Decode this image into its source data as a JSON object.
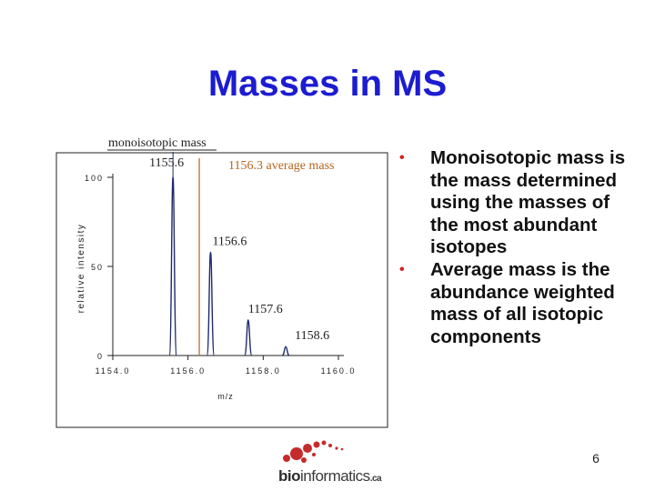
{
  "slide": {
    "title": "Masses in MS",
    "page_number": "6"
  },
  "bullets": [
    {
      "text": "Monoisotopic mass is the mass determined using the masses of the most abundant isotopes"
    },
    {
      "text": "Average mass is the abundance weighted mass of all isotopic components"
    }
  ],
  "logo": {
    "text_bold": "bio",
    "text_main": "informatics",
    "text_suffix": ".ca"
  },
  "chart_data": {
    "type": "line",
    "xlabel": "m/z",
    "ylabel": "relative intensity",
    "xlim": [
      1154.0,
      1160.0
    ],
    "ylim": [
      0,
      100
    ],
    "x_ticks": [
      "1154.0",
      "1156.0",
      "1158.0",
      "1160.0"
    ],
    "y_ticks": [
      "0",
      "50",
      "100"
    ],
    "annotations": {
      "monoisotopic_label": "monoisotopic mass",
      "average_label": "1156.3 average mass",
      "average_mass": 1156.3
    },
    "peaks": [
      {
        "mz": 1155.6,
        "label": "1155.6",
        "intensity": 100
      },
      {
        "mz": 1156.6,
        "label": "1156.6",
        "intensity": 58
      },
      {
        "mz": 1157.6,
        "label": "1157.6",
        "intensity": 20
      },
      {
        "mz": 1158.6,
        "label": "1158.6",
        "intensity": 5
      }
    ],
    "colors": {
      "average_line": "#b5651d",
      "peak": "#1f2a6b",
      "monoisotopic_line": "#1f2a6b"
    }
  }
}
